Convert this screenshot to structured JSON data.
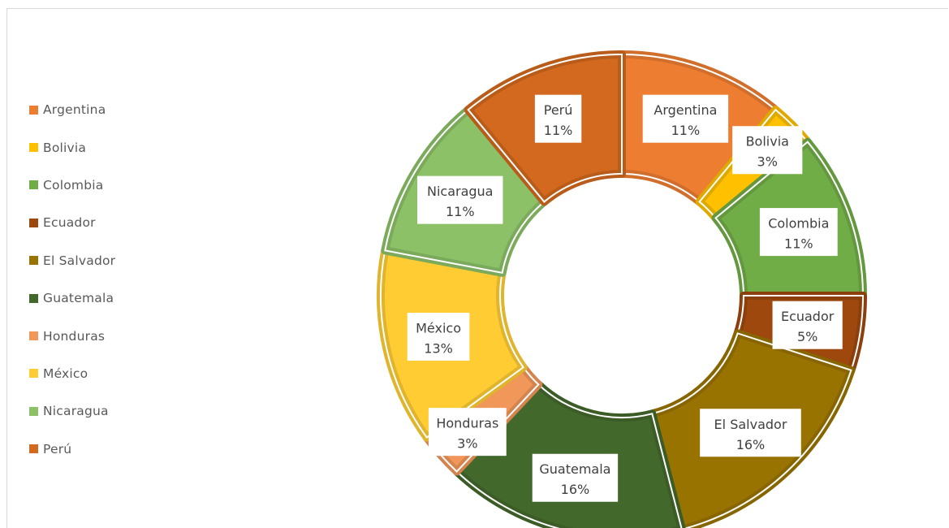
{
  "chart_data": {
    "type": "pie",
    "variant": "donut",
    "categories": [
      "Argentina",
      "Bolivia",
      "Colombia",
      "Ecuador",
      "El Salvador",
      "Guatemala",
      "Honduras",
      "México",
      "Nicaragua",
      "Perú"
    ],
    "values": [
      11,
      3,
      11,
      5,
      16,
      16,
      3,
      13,
      11,
      11
    ],
    "value_labels": [
      "11%",
      "3%",
      "11%",
      "5%",
      "16%",
      "16%",
      "3%",
      "13%",
      "11%",
      "11%"
    ],
    "colors": [
      "#ED7D31",
      "#FFC000",
      "#70AD47",
      "#9E480E",
      "#997300",
      "#43682B",
      "#F1975A",
      "#FFCD33",
      "#8CC168",
      "#D2691E"
    ],
    "legend_position": "left",
    "title": ""
  }
}
